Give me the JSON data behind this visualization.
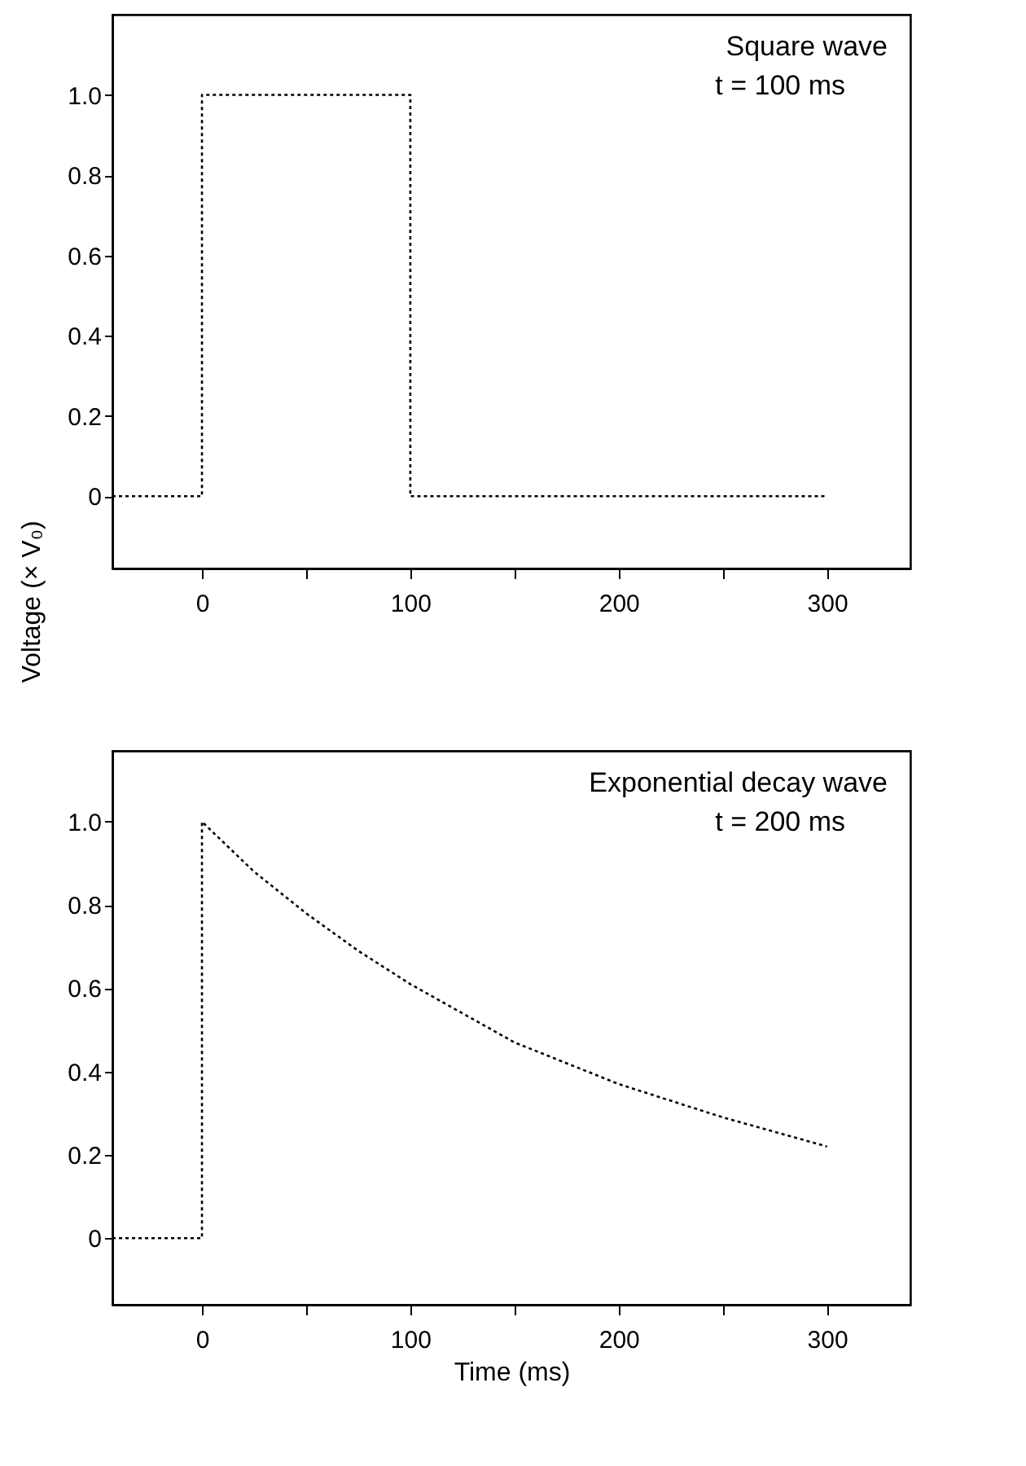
{
  "chart_data": [
    {
      "type": "line",
      "ylabel": "Voltage (× V₀)",
      "annotations": [
        "Square wave",
        "t = 100 ms"
      ],
      "line_style": "dotted",
      "marker": "none",
      "grid": false,
      "legend": false,
      "xlim": [
        -43,
        340
      ],
      "ylim": [
        -0.18,
        1.2
      ],
      "xticks": [
        0,
        {
          "value": 50,
          "label": null
        },
        100,
        {
          "value": 150,
          "label": null
        },
        200,
        {
          "value": 250,
          "label": null
        },
        300
      ],
      "yticks": [
        0,
        0.2,
        0.4,
        0.6,
        0.8,
        {
          "value": 1,
          "label": "1.0"
        }
      ],
      "series": [
        {
          "color": "#000000",
          "x": [
            -43,
            0,
            0,
            100,
            100,
            300
          ],
          "values": [
            0,
            0,
            1,
            1,
            0,
            0
          ]
        }
      ]
    },
    {
      "type": "line",
      "xlabel": "Time (ms)",
      "annotations": [
        "Exponential decay wave",
        "t = 200 ms"
      ],
      "line_style": "dotted",
      "marker": "none",
      "grid": false,
      "legend": false,
      "xlim": [
        -43,
        340
      ],
      "ylim": [
        -0.16,
        1.17
      ],
      "xticks": [
        0,
        {
          "value": 50,
          "label": null
        },
        100,
        {
          "value": 150,
          "label": null
        },
        200,
        {
          "value": 250,
          "label": null
        },
        300
      ],
      "yticks": [
        0,
        0.2,
        0.4,
        0.6,
        0.8,
        {
          "value": 1,
          "label": "1.0"
        }
      ],
      "series": [
        {
          "color": "#000000",
          "x": [
            -43,
            0,
            0,
            25,
            50,
            75,
            100,
            150,
            200,
            250,
            300
          ],
          "values": [
            0,
            0,
            1,
            0.88,
            0.78,
            0.69,
            0.61,
            0.47,
            0.37,
            0.29,
            0.22
          ]
        }
      ]
    }
  ]
}
